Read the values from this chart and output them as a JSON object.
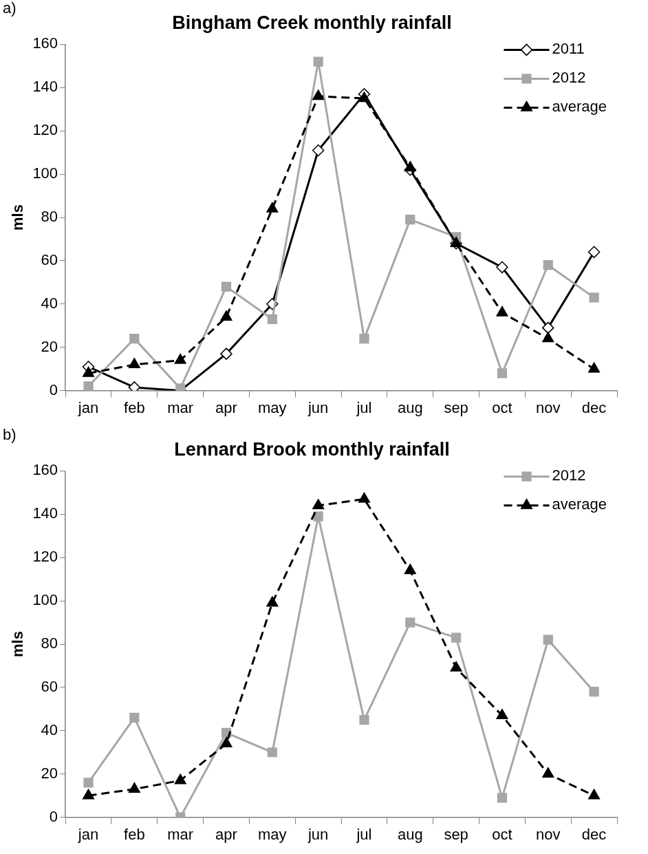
{
  "chart_data": [
    {
      "type": "line",
      "title": "Bingham Creek monthly rainfall",
      "ylabel": "mls",
      "annotations": [
        "a)"
      ],
      "categories": [
        "jan",
        "feb",
        "mar",
        "apr",
        "may",
        "jun",
        "jul",
        "aug",
        "sep",
        "oct",
        "nov",
        "dec"
      ],
      "ylim": [
        0,
        160
      ],
      "yticks": [
        0,
        20,
        40,
        60,
        80,
        100,
        120,
        140,
        160
      ],
      "grid": false,
      "legend": "top right",
      "series": [
        {
          "name": "2011",
          "color": "#000000",
          "marker": "diamond",
          "line_style": "solid",
          "values": [
            11,
            1.5,
            0,
            17,
            40,
            111,
            137,
            102,
            68,
            57,
            29,
            64
          ]
        },
        {
          "name": "2012",
          "color": "#a6a6a6",
          "marker": "square",
          "line_style": "solid",
          "values": [
            2,
            24,
            1,
            48,
            33,
            152,
            24,
            79,
            71,
            8,
            58,
            43
          ]
        },
        {
          "name": "average",
          "color": "#000000",
          "marker": "triangle",
          "line_style": "dashed",
          "values": [
            8,
            12,
            14,
            34,
            84,
            136,
            135,
            103,
            68,
            36,
            24,
            10
          ]
        }
      ]
    },
    {
      "type": "line",
      "title": "Lennard Brook monthly rainfall",
      "ylabel": "mls",
      "annotations": [
        "b)"
      ],
      "categories": [
        "jan",
        "feb",
        "mar",
        "apr",
        "may",
        "jun",
        "jul",
        "aug",
        "sep",
        "oct",
        "nov",
        "dec"
      ],
      "ylim": [
        0,
        160
      ],
      "yticks": [
        0,
        20,
        40,
        60,
        80,
        100,
        120,
        140,
        160
      ],
      "grid": false,
      "legend": "top right",
      "series": [
        {
          "name": "2012",
          "color": "#a6a6a6",
          "marker": "square",
          "line_style": "solid",
          "values": [
            16,
            46,
            0,
            39,
            30,
            139,
            45,
            90,
            83,
            9,
            82,
            58
          ]
        },
        {
          "name": "average",
          "color": "#000000",
          "marker": "triangle",
          "line_style": "dashed",
          "values": [
            10,
            13,
            17,
            34,
            99,
            144,
            147,
            114,
            69,
            47,
            20,
            10
          ]
        }
      ]
    }
  ]
}
